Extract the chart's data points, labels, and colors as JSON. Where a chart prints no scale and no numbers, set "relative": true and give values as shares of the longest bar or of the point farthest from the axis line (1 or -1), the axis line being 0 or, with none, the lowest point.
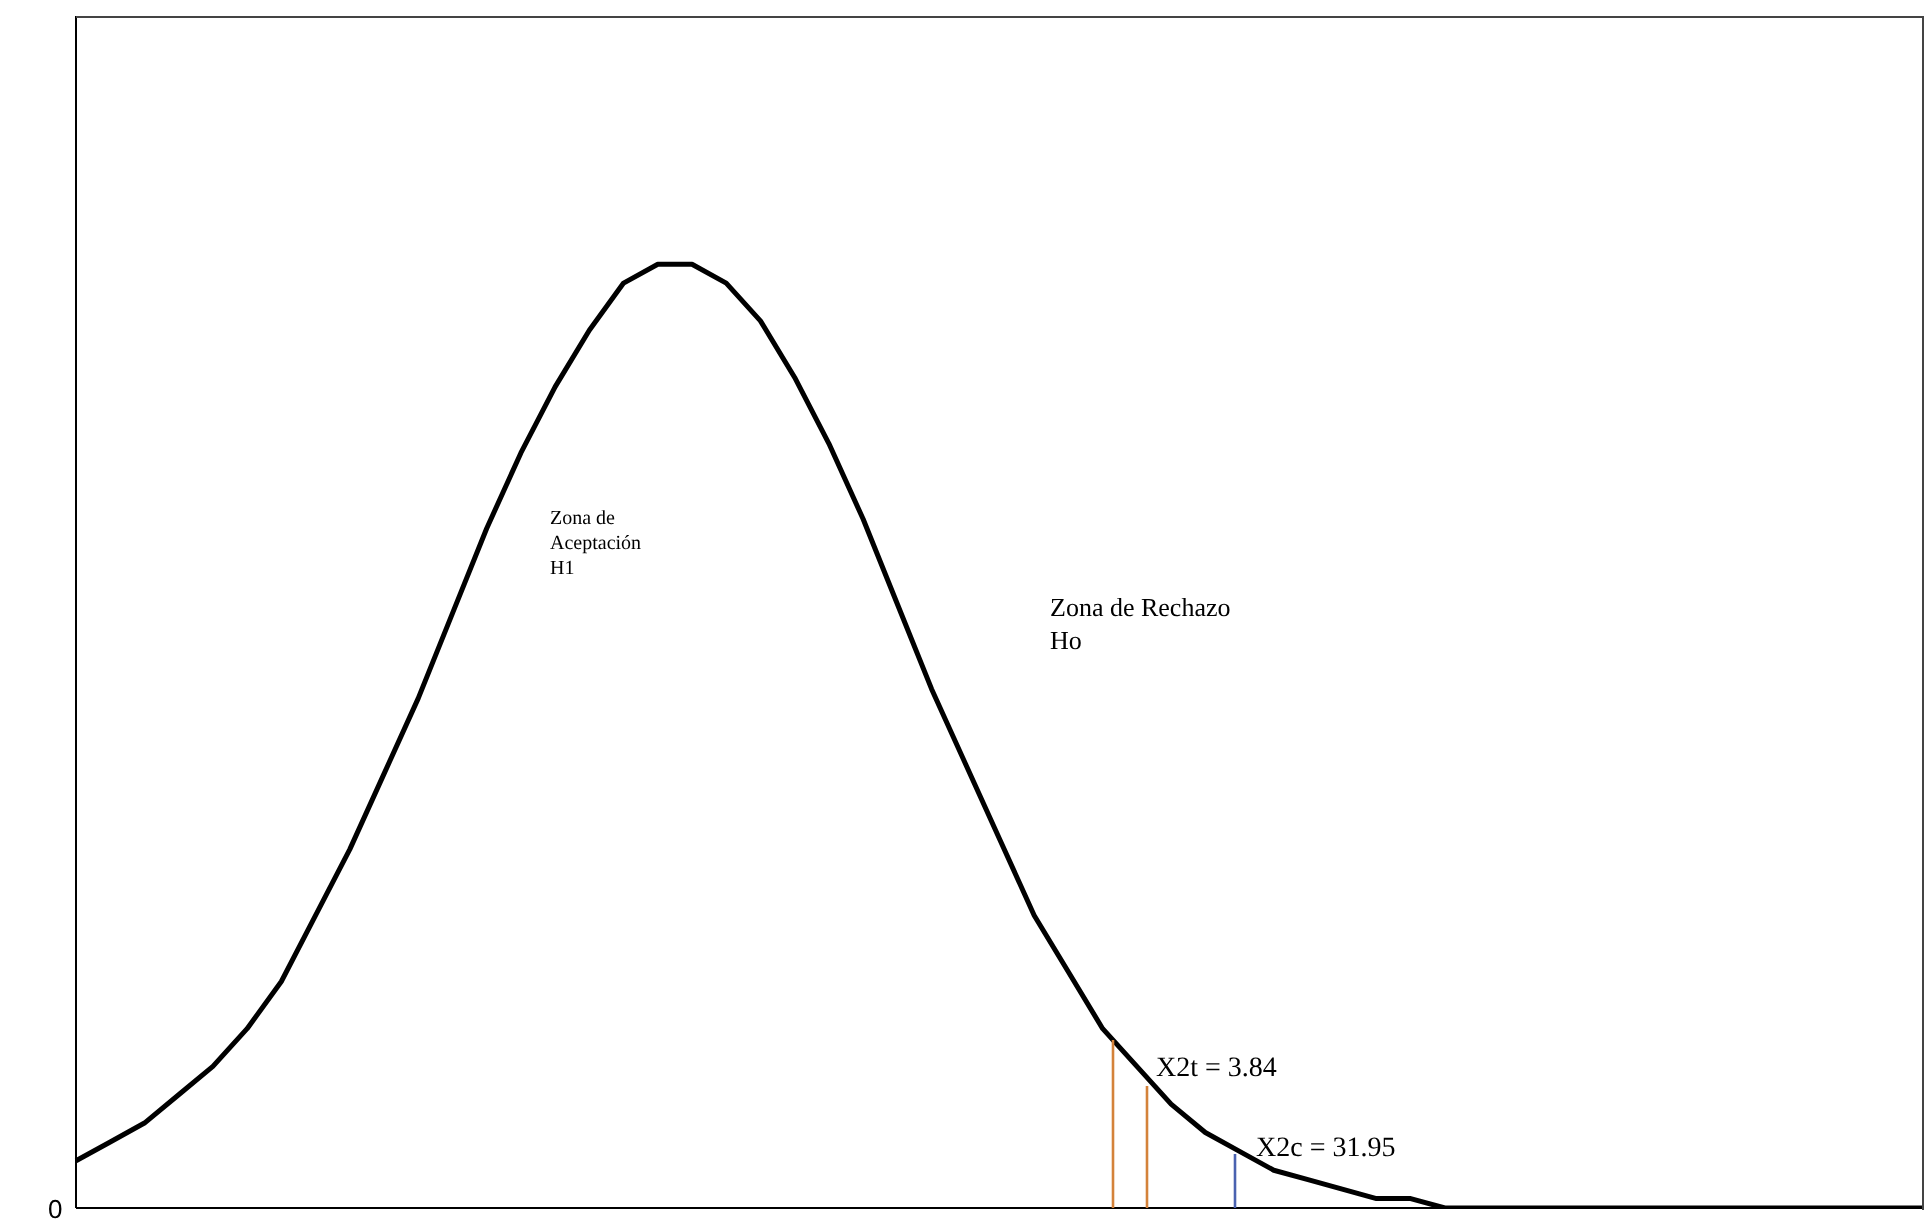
{
  "chart_data": {
    "type": "line",
    "relative": true,
    "marker": "none",
    "line_style": "solid",
    "categories": [
      null,
      null,
      null,
      null,
      null,
      null,
      null,
      null,
      null,
      null,
      null,
      null,
      null,
      null,
      null,
      null,
      null,
      null,
      null,
      null,
      null,
      null,
      null,
      null,
      null,
      null,
      null,
      null,
      null,
      null,
      null,
      null,
      null,
      null,
      null,
      null,
      null,
      null,
      null,
      null,
      null,
      null,
      null,
      null,
      null,
      null,
      null,
      null,
      null,
      null,
      null,
      null,
      null,
      null,
      null
    ],
    "series": [
      {
        "color": "#000000",
        "values": [
          0.05,
          0.07,
          0.09,
          0.12,
          0.15,
          0.19,
          0.24,
          0.31,
          0.38,
          0.46,
          0.54,
          0.63,
          0.72,
          0.8,
          0.87,
          0.93,
          0.98,
          1,
          1,
          0.98,
          0.94,
          0.88,
          0.81,
          0.73,
          0.64,
          0.55,
          0.47,
          0.39,
          0.31,
          0.25,
          0.19,
          0.15,
          0.11,
          0.08,
          0.06,
          0.04,
          0.03,
          0.02,
          0.01,
          0.01,
          0,
          0,
          0,
          0,
          0,
          0,
          0,
          0,
          0,
          0,
          0,
          0,
          0,
          0,
          0
        ]
      }
    ],
    "annotations": [
      "Zona de\nAceptación\nH1",
      "Zona de Rechazo\nHo",
      "X2t = 3.84",
      "X2c = 31.95",
      "0"
    ]
  }
}
